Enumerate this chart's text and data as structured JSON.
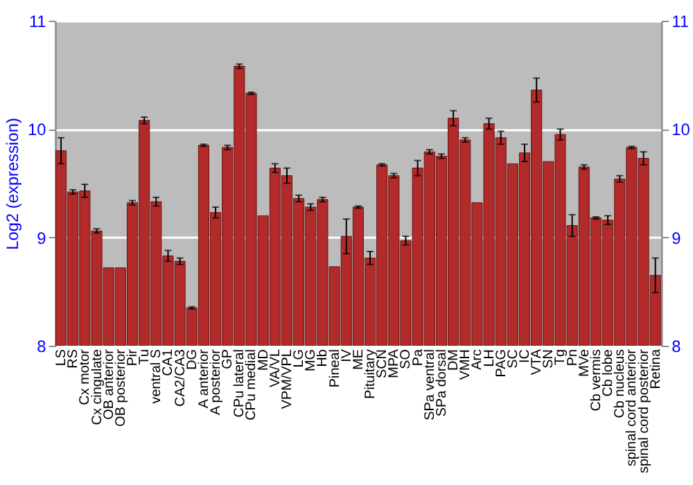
{
  "chart_data": {
    "type": "bar",
    "ylabel": "Log2 (expression)",
    "categories": [
      "LS",
      "RS",
      "Cx motor",
      "Cx cingulate",
      "OB anterior",
      "OB posterior",
      "Pir",
      "Tu",
      "ventral S",
      "CA1",
      "CA2/CA3",
      "DG",
      "A anterior",
      "A posterior",
      "GP",
      "CPu lateral",
      "CPu medial",
      "MD",
      "VA/VL",
      "VPM/VPL",
      "LG",
      "MG",
      "Hb",
      "Pineal",
      "IV",
      "ME",
      "Pituitary",
      "SCN",
      "MPA",
      "SO",
      "Pa",
      "SPa ventral",
      "SPa dorsal",
      "DM",
      "VMH",
      "Arc",
      "LH",
      "PAG",
      "SC",
      "IC",
      "VTA",
      "SN",
      "Tg",
      "Pn",
      "MVe",
      "Cb vermis",
      "Cb lobe",
      "Cb nucleus",
      "spinal cord anterior",
      "spinal cord posterior",
      "Retina"
    ],
    "values": [
      9.8,
      9.42,
      9.43,
      9.06,
      8.72,
      8.72,
      9.32,
      10.08,
      9.33,
      8.83,
      8.78,
      8.35,
      9.85,
      9.23,
      9.83,
      10.58,
      10.33,
      9.2,
      9.64,
      9.57,
      9.36,
      9.28,
      9.35,
      8.73,
      9.01,
      9.28,
      8.81,
      9.67,
      9.57,
      8.97,
      9.64,
      9.79,
      9.75,
      10.1,
      9.9,
      9.32,
      10.05,
      9.92,
      9.68,
      9.78,
      10.36,
      9.7,
      9.95,
      9.11,
      9.65,
      9.18,
      9.16,
      9.54,
      9.83,
      9.73,
      8.65
    ],
    "errors": [
      0.12,
      0.02,
      0.06,
      0.02,
      null,
      null,
      0.02,
      0.03,
      0.04,
      0.05,
      0.03,
      0.01,
      0.01,
      0.05,
      0.02,
      0.02,
      0.01,
      null,
      0.04,
      0.07,
      0.03,
      0.03,
      0.02,
      null,
      0.16,
      0.01,
      0.06,
      0.01,
      0.02,
      0.04,
      0.07,
      0.02,
      0.02,
      0.07,
      0.02,
      null,
      0.05,
      0.06,
      null,
      0.08,
      0.11,
      null,
      0.05,
      0.1,
      0.02,
      0.01,
      0.04,
      0.03,
      0.01,
      0.06,
      0.16
    ],
    "color": "#b22a2a",
    "ylim": [
      8,
      11
    ],
    "yticks": [
      8,
      9,
      10,
      11
    ],
    "y2lim": [
      8,
      11
    ],
    "y2ticks": [
      8,
      9,
      10,
      11
    ],
    "grid": "y"
  }
}
